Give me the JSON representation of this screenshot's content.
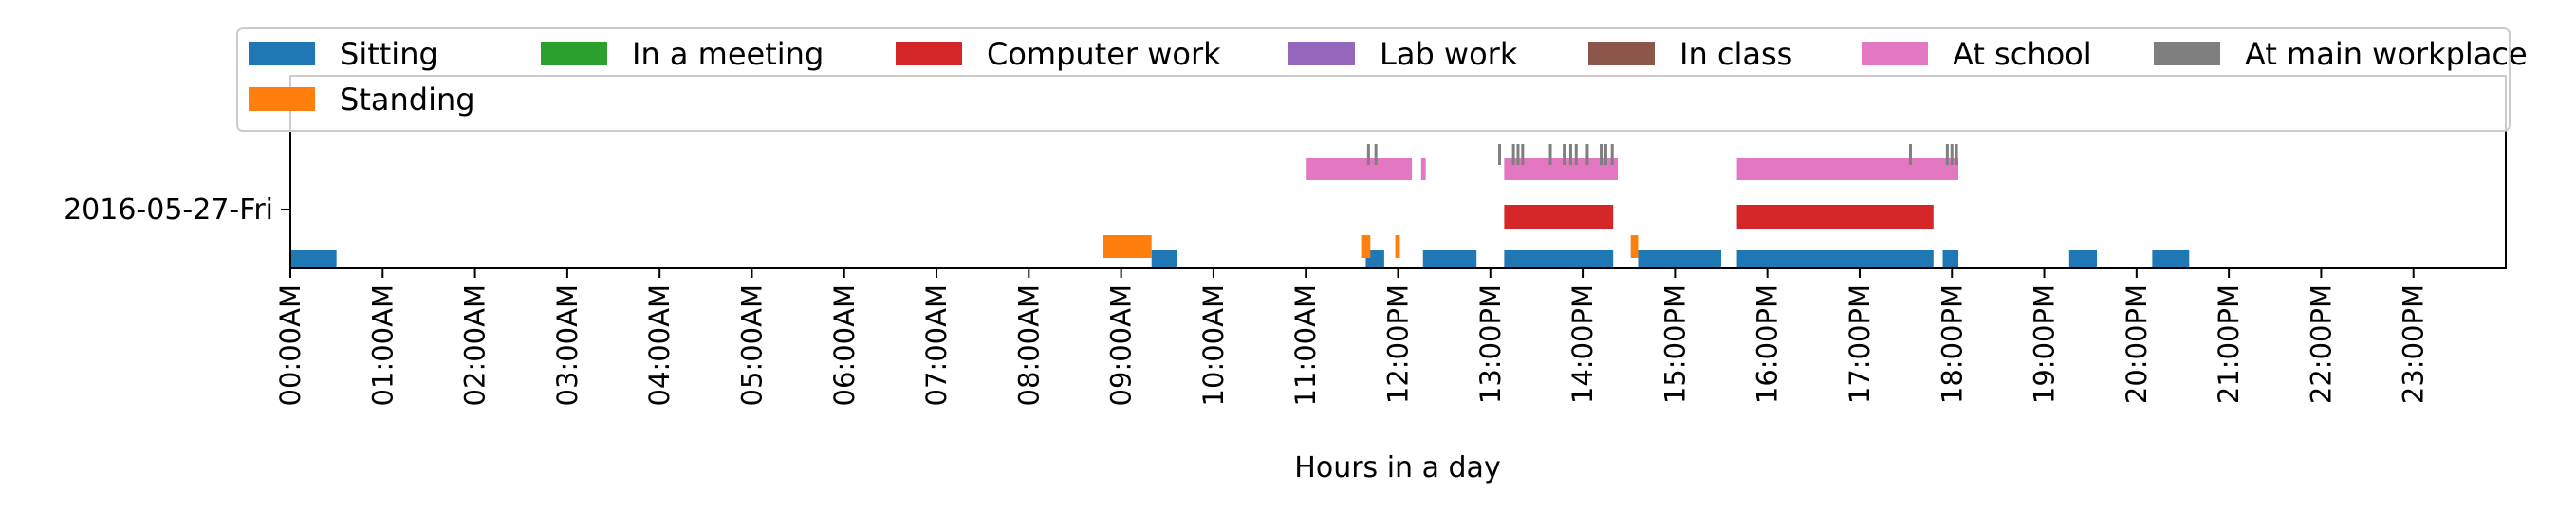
{
  "chart_data": {
    "type": "timeline",
    "title": "",
    "xlabel": "Hours in a day",
    "ylabel": "",
    "day_label": "2016-05-27-Fri",
    "xlim": [
      0,
      24
    ],
    "x_ticks": [
      "00:00AM",
      "01:00AM",
      "02:00AM",
      "03:00AM",
      "04:00AM",
      "05:00AM",
      "06:00AM",
      "07:00AM",
      "08:00AM",
      "09:00AM",
      "10:00AM",
      "11:00AM",
      "12:00PM",
      "13:00PM",
      "14:00PM",
      "15:00PM",
      "16:00PM",
      "17:00PM",
      "18:00PM",
      "19:00PM",
      "20:00PM",
      "21:00PM",
      "22:00PM",
      "23:00PM"
    ],
    "legend_position": "top",
    "grid": false,
    "series": [
      {
        "name": "Sitting",
        "color": "#1f77b4",
        "lane": "bottom",
        "intervals": [
          [
            0.0,
            0.5
          ],
          [
            9.33,
            9.6
          ],
          [
            11.65,
            11.85
          ],
          [
            12.27,
            12.85
          ],
          [
            13.15,
            14.33
          ],
          [
            14.6,
            15.5
          ],
          [
            15.67,
            17.8
          ],
          [
            17.9,
            18.07
          ],
          [
            19.27,
            19.57
          ],
          [
            20.17,
            20.57
          ]
        ]
      },
      {
        "name": "Standing",
        "color": "#ff7f0e",
        "lane": "upper-bottom",
        "intervals": [
          [
            8.8,
            9.33
          ],
          [
            11.6,
            11.7
          ],
          [
            11.97,
            12.02
          ],
          [
            14.52,
            14.6
          ]
        ]
      },
      {
        "name": "In a meeting",
        "color": "#2ca02c",
        "lane": "meeting",
        "intervals": []
      },
      {
        "name": "Computer work",
        "color": "#d62728",
        "lane": "computer",
        "intervals": [
          [
            13.15,
            14.33
          ],
          [
            15.67,
            17.8
          ]
        ]
      },
      {
        "name": "Lab work",
        "color": "#9467bd",
        "lane": "lab",
        "intervals": []
      },
      {
        "name": "In class",
        "color": "#8c564b",
        "lane": "class",
        "intervals": []
      },
      {
        "name": "At school",
        "color": "#e377c2",
        "lane": "school",
        "intervals": [
          [
            11.0,
            12.15
          ],
          [
            12.25,
            12.3
          ],
          [
            13.15,
            14.38
          ],
          [
            15.67,
            18.07
          ]
        ]
      },
      {
        "name": "At main workplace",
        "color": "#7f7f7f",
        "lane": "workplace",
        "ticks": [
          11.68,
          11.76,
          13.1,
          13.25,
          13.3,
          13.35,
          13.65,
          13.8,
          13.87,
          13.93,
          14.05,
          14.2,
          14.25,
          14.32,
          17.55,
          17.95,
          18.0,
          18.05
        ]
      }
    ]
  }
}
